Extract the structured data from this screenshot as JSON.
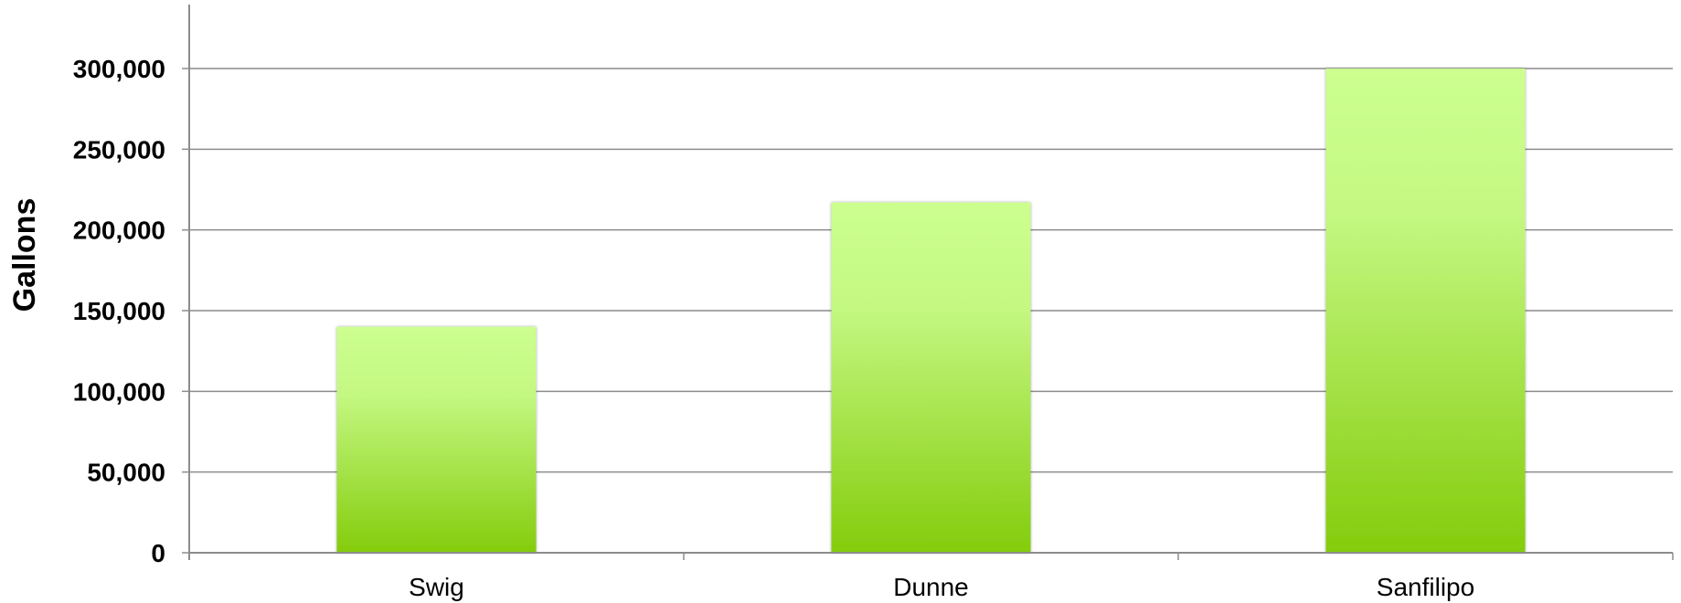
{
  "chart_data": {
    "type": "bar",
    "title": "",
    "xlabel": "",
    "ylabel": "Gallons",
    "categories": [
      "Swig",
      "Dunne",
      "Sanfilipo"
    ],
    "values": [
      140000,
      217000,
      300000
    ],
    "ylim": [
      0,
      300000
    ],
    "yticks": [
      0,
      50000,
      100000,
      150000,
      200000,
      250000,
      300000
    ],
    "ytick_labels": [
      "0",
      "50,000",
      "100,000",
      "150,000",
      "200,000",
      "250,000",
      "300,000"
    ],
    "grid": true,
    "legend": "none",
    "colors": {
      "bar_top": "#ccff8f",
      "bar_bottom": "#84cc0c",
      "grid": "#8c8c8c",
      "axis": "#8c8c8c"
    }
  }
}
